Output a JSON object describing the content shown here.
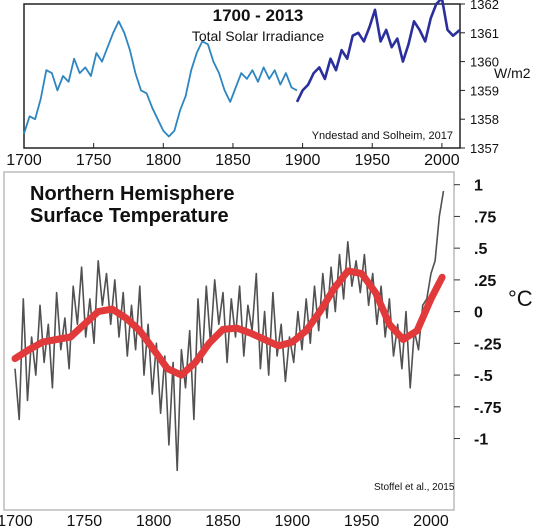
{
  "chart_data": [
    {
      "type": "line",
      "title": "1700 - 2013",
      "subtitle": "Total Solar Irradiance",
      "ylabel": "W/m2",
      "source": "Yndestad and Solheim, 2017",
      "xlim": [
        1700,
        2013
      ],
      "ylim": [
        1357,
        1362
      ],
      "x_ticks": [
        "1700",
        "1750",
        "1800",
        "1850",
        "1900",
        "1950",
        "2000"
      ],
      "y_ticks": [
        "1357",
        "1358",
        "1359",
        "1360",
        "1361",
        "1362"
      ],
      "colors": {
        "early": "#2e86c1",
        "late": "#2b2f9c"
      },
      "series": [
        {
          "x": [
            1700,
            1704,
            1708,
            1712,
            1716,
            1720,
            1724,
            1728,
            1732,
            1736,
            1740,
            1744,
            1748,
            1752,
            1756,
            1760,
            1764,
            1768,
            1772,
            1776,
            1780,
            1784,
            1788,
            1792,
            1796,
            1800,
            1804,
            1808,
            1812,
            1816,
            1820,
            1824,
            1828,
            1832,
            1836,
            1840,
            1844,
            1848,
            1852,
            1856,
            1860,
            1864,
            1868,
            1872,
            1876,
            1880,
            1884,
            1888,
            1892,
            1896
          ],
          "values": [
            1357.5,
            1358.1,
            1358.0,
            1358.7,
            1359.7,
            1359.6,
            1359.0,
            1359.5,
            1359.3,
            1360.1,
            1359.6,
            1359.8,
            1359.5,
            1360.3,
            1360.0,
            1360.5,
            1361.0,
            1361.4,
            1361.0,
            1360.4,
            1359.6,
            1359.0,
            1358.9,
            1358.4,
            1358.0,
            1357.6,
            1357.4,
            1357.6,
            1358.3,
            1358.8,
            1359.7,
            1360.3,
            1360.7,
            1360.6,
            1360.0,
            1359.6,
            1359.0,
            1358.6,
            1359.1,
            1359.6,
            1359.4,
            1359.7,
            1359.3,
            1359.8,
            1359.4,
            1359.7,
            1359.2,
            1359.6,
            1359.1,
            1359.0
          ]
        },
        {
          "x": [
            1896,
            1900,
            1904,
            1908,
            1912,
            1916,
            1920,
            1924,
            1928,
            1932,
            1936,
            1940,
            1944,
            1948,
            1952,
            1956,
            1960,
            1964,
            1968,
            1972,
            1976,
            1980,
            1984,
            1988,
            1992,
            1996,
            2000,
            2004,
            2008,
            2013
          ],
          "values": [
            1358.6,
            1359.0,
            1359.2,
            1359.6,
            1359.8,
            1359.4,
            1360.1,
            1359.7,
            1360.4,
            1360.1,
            1360.9,
            1361.0,
            1360.7,
            1361.2,
            1361.8,
            1360.7,
            1361.1,
            1360.5,
            1360.8,
            1360.0,
            1360.6,
            1361.4,
            1361.1,
            1360.7,
            1361.5,
            1362.0,
            1362.2,
            1361.1,
            1360.9,
            1361.1
          ]
        }
      ]
    },
    {
      "type": "line",
      "title": "Northern Hemisphere Surface Temperature",
      "title_lines": [
        "Northern Hemisphere",
        "Surface Temperature"
      ],
      "ylabel": "°C",
      "source": "Stoffel et al., 2015",
      "xlim": [
        1700,
        2013
      ],
      "ylim": [
        -1.5,
        1.1
      ],
      "x_ticks": [
        "1700",
        "1750",
        "1800",
        "1850",
        "1900",
        "1950",
        "2000"
      ],
      "y_ticks": [
        {
          "value": 1,
          "label": "1"
        },
        {
          "value": 0.75,
          "label": ".75"
        },
        {
          "value": 0.5,
          "label": ".5"
        },
        {
          "value": 0.25,
          "label": ".25"
        },
        {
          "value": 0,
          "label": "0"
        },
        {
          "value": -0.25,
          "label": "-.25"
        },
        {
          "value": -0.5,
          "label": "-.5"
        },
        {
          "value": -0.75,
          "label": "-.75"
        },
        {
          "value": -1,
          "label": "-1"
        }
      ],
      "colors": {
        "annual": "#333333",
        "smooth": "#e23a3a"
      },
      "series": [
        {
          "x": [
            1700,
            1703,
            1706,
            1709,
            1712,
            1715,
            1718,
            1721,
            1724,
            1727,
            1730,
            1733,
            1736,
            1739,
            1742,
            1745,
            1748,
            1751,
            1754,
            1757,
            1760,
            1763,
            1766,
            1769,
            1772,
            1775,
            1778,
            1781,
            1784,
            1787,
            1790,
            1793,
            1796,
            1799,
            1802,
            1805,
            1808,
            1811,
            1814,
            1817,
            1820,
            1823,
            1826,
            1829,
            1832,
            1835,
            1838,
            1841,
            1844,
            1847,
            1850,
            1853,
            1856,
            1859,
            1862,
            1865,
            1868,
            1871,
            1874,
            1877,
            1880,
            1883,
            1886,
            1889,
            1892,
            1895,
            1898,
            1901,
            1904,
            1907,
            1910,
            1913,
            1916,
            1919,
            1922,
            1925,
            1928,
            1931,
            1934,
            1937,
            1940,
            1943,
            1946,
            1949,
            1952,
            1955,
            1958,
            1961,
            1964,
            1967,
            1970,
            1973,
            1976,
            1979,
            1982,
            1985,
            1988,
            1991,
            1994,
            1997,
            2000,
            2003,
            2006,
            2009
          ],
          "values": [
            -0.45,
            -0.85,
            0.1,
            -0.7,
            -0.2,
            -0.5,
            0.05,
            -0.4,
            -0.1,
            -0.6,
            0.15,
            -0.3,
            -0.05,
            -0.45,
            0.2,
            -0.1,
            0.35,
            -0.2,
            0.1,
            -0.25,
            0.4,
            0.05,
            0.3,
            -0.1,
            0.25,
            -0.2,
            0.15,
            -0.35,
            0.05,
            -0.3,
            0.2,
            -0.5,
            -0.1,
            -0.65,
            -0.25,
            -0.8,
            -0.35,
            -1.05,
            -0.4,
            -1.25,
            -0.3,
            -0.6,
            -0.15,
            -0.85,
            0.1,
            -0.4,
            0.2,
            -0.25,
            0.25,
            -0.1,
            0.15,
            -0.4,
            0.1,
            -0.2,
            0.2,
            -0.35,
            0.05,
            -0.15,
            0.3,
            -0.45,
            0.0,
            -0.5,
            0.15,
            -0.35,
            -0.1,
            -0.55,
            -0.2,
            -0.4,
            0.0,
            -0.3,
            0.1,
            -0.25,
            0.2,
            -0.15,
            0.3,
            -0.05,
            0.35,
            0.0,
            0.45,
            0.1,
            0.55,
            0.2,
            0.4,
            0.15,
            0.45,
            0.05,
            0.3,
            -0.1,
            0.2,
            -0.2,
            0.1,
            -0.35,
            -0.1,
            -0.45,
            0.0,
            -0.6,
            -0.15,
            -0.3,
            0.05,
            0.1,
            0.3,
            0.4,
            0.75,
            0.95
          ]
        },
        {
          "x": [
            1700,
            1710,
            1720,
            1730,
            1740,
            1750,
            1760,
            1770,
            1780,
            1790,
            1800,
            1810,
            1820,
            1830,
            1840,
            1850,
            1860,
            1870,
            1880,
            1890,
            1900,
            1910,
            1920,
            1930,
            1940,
            1950,
            1960,
            1970,
            1980,
            1990,
            2000,
            2008
          ],
          "values": [
            -0.37,
            -0.3,
            -0.24,
            -0.22,
            -0.2,
            -0.1,
            0.0,
            0.02,
            -0.05,
            -0.15,
            -0.3,
            -0.45,
            -0.5,
            -0.4,
            -0.25,
            -0.14,
            -0.13,
            -0.17,
            -0.22,
            -0.27,
            -0.24,
            -0.15,
            0.0,
            0.18,
            0.32,
            0.3,
            0.15,
            -0.1,
            -0.22,
            -0.15,
            0.1,
            0.27
          ]
        }
      ]
    }
  ]
}
